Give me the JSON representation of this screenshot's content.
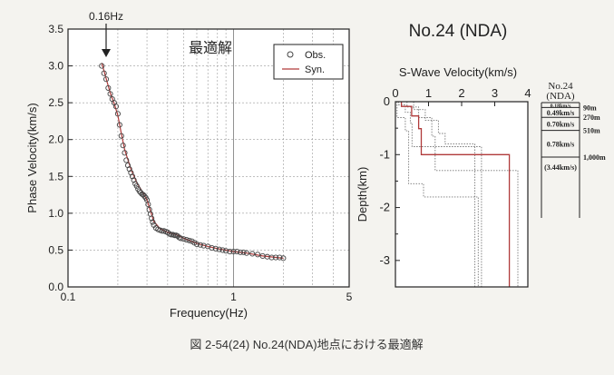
{
  "caption": "図 2-54(24)  No.24(NDA)地点における最適解",
  "charts": {
    "dispersion": {
      "inner_title": "最適解",
      "annotation": "0.16Hz",
      "xlabel": "Frequency(Hz)",
      "ylabel": "Phase Velocity(km/s)",
      "xticks": [
        "0.1",
        "1",
        "5"
      ],
      "yticks": [
        "0.0",
        "0.5",
        "1.0",
        "1.5",
        "2.0",
        "2.5",
        "3.0",
        "3.5"
      ],
      "legend": {
        "obs": "Obs.",
        "syn": "Syn."
      }
    },
    "profile": {
      "station_title": "No.24 (NDA)",
      "xlabel": "S-Wave Velocity(km/s)",
      "ylabel": "Depth(km)",
      "xticks": [
        "0",
        "1",
        "2",
        "3",
        "4"
      ],
      "yticks": [
        "0",
        "-1",
        "-2",
        "-3"
      ]
    },
    "column": {
      "title_line1": "No.24",
      "title_line2": "(NDA)",
      "layers": [
        {
          "velocity": "0.18km/s",
          "depth": ""
        },
        {
          "velocity": "0.49km/s",
          "depth": "90m"
        },
        {
          "velocity": "0.70km/s",
          "depth": "270m"
        },
        {
          "velocity": "0.78km/s",
          "depth": "510m"
        },
        {
          "velocity": "(3.44km/s)",
          "depth": "1,000m"
        }
      ]
    }
  },
  "chart_data": [
    {
      "type": "scatter",
      "xlabel": "Frequency(Hz)",
      "ylabel": "Phase Velocity(km/s)",
      "xscale": "log",
      "xlim": [
        0.1,
        5
      ],
      "ylim": [
        0,
        3.5
      ],
      "grid": true,
      "legend_position": "top-right",
      "annotations": [
        {
          "text": "0.16Hz",
          "x": 0.16
        }
      ],
      "series": [
        {
          "name": "Obs.",
          "x": [
            0.16,
            0.165,
            0.17,
            0.175,
            0.18,
            0.185,
            0.19,
            0.195,
            0.2,
            0.205,
            0.21,
            0.215,
            0.22,
            0.225,
            0.23,
            0.235,
            0.24,
            0.245,
            0.25,
            0.255,
            0.26,
            0.265,
            0.27,
            0.275,
            0.28,
            0.285,
            0.29,
            0.295,
            0.3,
            0.305,
            0.31,
            0.315,
            0.32,
            0.325,
            0.33,
            0.34,
            0.35,
            0.36,
            0.37,
            0.38,
            0.39,
            0.4,
            0.41,
            0.42,
            0.43,
            0.44,
            0.45,
            0.46,
            0.47,
            0.48,
            0.5,
            0.52,
            0.54,
            0.56,
            0.58,
            0.6,
            0.63,
            0.66,
            0.7,
            0.74,
            0.78,
            0.82,
            0.86,
            0.9,
            0.95,
            1.0,
            1.05,
            1.1,
            1.15,
            1.2,
            1.3,
            1.4,
            1.5,
            1.6,
            1.7,
            1.8,
            1.9,
            2.0
          ],
          "y": [
            3.0,
            2.9,
            2.82,
            2.7,
            2.62,
            2.55,
            2.5,
            2.45,
            2.35,
            2.2,
            2.05,
            1.92,
            1.82,
            1.72,
            1.65,
            1.6,
            1.55,
            1.5,
            1.45,
            1.4,
            1.37,
            1.33,
            1.3,
            1.28,
            1.26,
            1.25,
            1.23,
            1.21,
            1.18,
            1.12,
            1.05,
            0.99,
            0.93,
            0.88,
            0.84,
            0.8,
            0.78,
            0.77,
            0.76,
            0.76,
            0.75,
            0.74,
            0.72,
            0.71,
            0.71,
            0.7,
            0.7,
            0.69,
            0.67,
            0.66,
            0.65,
            0.64,
            0.63,
            0.62,
            0.6,
            0.58,
            0.57,
            0.56,
            0.55,
            0.53,
            0.52,
            0.51,
            0.5,
            0.49,
            0.48,
            0.48,
            0.48,
            0.47,
            0.47,
            0.46,
            0.45,
            0.44,
            0.42,
            0.41,
            0.4,
            0.4,
            0.4,
            0.39
          ]
        },
        {
          "name": "Syn.",
          "x": [
            0.16,
            0.17,
            0.18,
            0.19,
            0.2,
            0.21,
            0.22,
            0.24,
            0.26,
            0.28,
            0.3,
            0.33,
            0.36,
            0.4,
            0.45,
            0.5,
            0.6,
            0.7,
            0.8,
            1.0,
            1.2,
            1.5,
            1.8,
            2.0
          ],
          "y": [
            3.04,
            2.83,
            2.63,
            2.49,
            2.33,
            2.08,
            1.86,
            1.6,
            1.42,
            1.3,
            1.18,
            0.89,
            0.79,
            0.74,
            0.71,
            0.66,
            0.59,
            0.55,
            0.52,
            0.48,
            0.46,
            0.42,
            0.4,
            0.39
          ]
        }
      ]
    },
    {
      "type": "line",
      "xlabel": "S-Wave Velocity(km/s)",
      "ylabel": "Depth(km)",
      "xlim": [
        0,
        4
      ],
      "ylim": [
        -3.5,
        0
      ],
      "grid": false,
      "series": [
        {
          "style": "solid",
          "color": "#b03a3a",
          "points": [
            [
              0.18,
              0
            ],
            [
              0.18,
              -0.09
            ],
            [
              0.49,
              -0.09
            ],
            [
              0.49,
              -0.27
            ],
            [
              0.7,
              -0.27
            ],
            [
              0.7,
              -0.51
            ],
            [
              0.78,
              -0.51
            ],
            [
              0.78,
              -1.0
            ],
            [
              3.44,
              -1.0
            ],
            [
              3.44,
              -3.5
            ]
          ]
        },
        {
          "style": "dotted",
          "color": "#777777",
          "points": [
            [
              0.1,
              0
            ],
            [
              0.1,
              -0.06
            ],
            [
              0.3,
              -0.06
            ],
            [
              0.3,
              -0.2
            ],
            [
              0.45,
              -0.2
            ],
            [
              0.45,
              -0.4
            ],
            [
              0.5,
              -0.4
            ],
            [
              0.5,
              -0.85
            ],
            [
              2.6,
              -0.85
            ],
            [
              2.6,
              -3.5
            ]
          ]
        },
        {
          "style": "dotted",
          "color": "#777777",
          "points": [
            [
              0.35,
              0
            ],
            [
              0.35,
              -0.1
            ],
            [
              0.7,
              -0.1
            ],
            [
              0.7,
              -0.3
            ],
            [
              1.1,
              -0.3
            ],
            [
              1.1,
              -0.65
            ],
            [
              1.2,
              -0.65
            ],
            [
              1.2,
              -1.3
            ],
            [
              3.7,
              -1.3
            ],
            [
              3.7,
              -3.5
            ]
          ]
        },
        {
          "style": "dotted",
          "color": "#777777",
          "points": [
            [
              0.55,
              0
            ],
            [
              0.55,
              -0.15
            ],
            [
              0.9,
              -0.15
            ],
            [
              0.9,
              -0.35
            ],
            [
              1.3,
              -0.35
            ],
            [
              1.3,
              -0.6
            ],
            [
              1.5,
              -0.6
            ],
            [
              1.5,
              -0.8
            ],
            [
              2.4,
              -0.8
            ],
            [
              2.4,
              -3.5
            ]
          ]
        },
        {
          "style": "dotted",
          "color": "#777777",
          "points": [
            [
              0.05,
              0
            ],
            [
              0.05,
              -0.3
            ],
            [
              0.3,
              -0.3
            ],
            [
              0.3,
              -0.55
            ],
            [
              0.4,
              -0.55
            ],
            [
              0.4,
              -1.55
            ],
            [
              0.85,
              -1.55
            ],
            [
              0.85,
              -1.8
            ],
            [
              2.5,
              -1.8
            ],
            [
              2.5,
              -3.5
            ]
          ]
        }
      ]
    }
  ]
}
